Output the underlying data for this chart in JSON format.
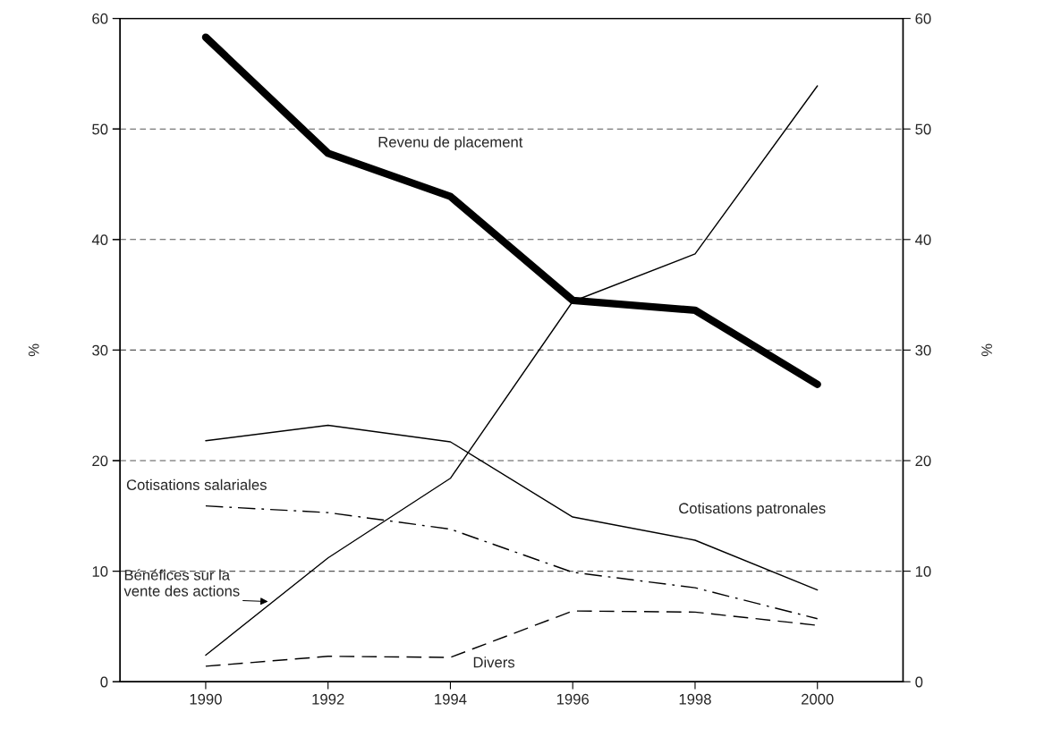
{
  "chart_data": {
    "type": "line",
    "x": [
      1990,
      1992,
      1994,
      1996,
      1998,
      2000
    ],
    "xlim": [
      1988.6,
      2001.4
    ],
    "xticks": [
      1990,
      1992,
      1994,
      1996,
      1998,
      2000
    ],
    "ylim": [
      0,
      60
    ],
    "yticks": [
      0,
      10,
      20,
      30,
      40,
      50,
      60
    ],
    "y2lim": [
      0,
      60
    ],
    "y2ticks": [
      0,
      10,
      20,
      30,
      40,
      50,
      60
    ],
    "ylabel": "%",
    "y2label": "%",
    "grid": "y",
    "legend": false,
    "marker": "none",
    "series": [
      {
        "name": "Revenu de placement",
        "color": "#000000",
        "line_style": "solid",
        "values": [
          58.3,
          47.8,
          43.9,
          34.5,
          33.6,
          26.9
        ]
      },
      {
        "name": "Bénéfices sur la\nvente des actions",
        "color": "#000000",
        "line_style": "solid",
        "values": [
          2.4,
          11.2,
          18.4,
          34.4,
          38.7,
          53.9
        ]
      },
      {
        "name": "Cotisations patronales",
        "color": "#000000",
        "line_style": "solid",
        "values": [
          21.8,
          23.2,
          21.7,
          14.9,
          12.8,
          8.3
        ]
      },
      {
        "name": "Cotisations salariales",
        "color": "#000000",
        "line_style": "dashdot",
        "values": [
          15.9,
          15.3,
          13.8,
          9.9,
          8.5,
          5.7
        ]
      },
      {
        "name": "Divers",
        "color": "#000000",
        "line_style": "dashed",
        "values": [
          1.4,
          2.3,
          2.2,
          6.4,
          6.3,
          5.1
        ]
      }
    ]
  }
}
